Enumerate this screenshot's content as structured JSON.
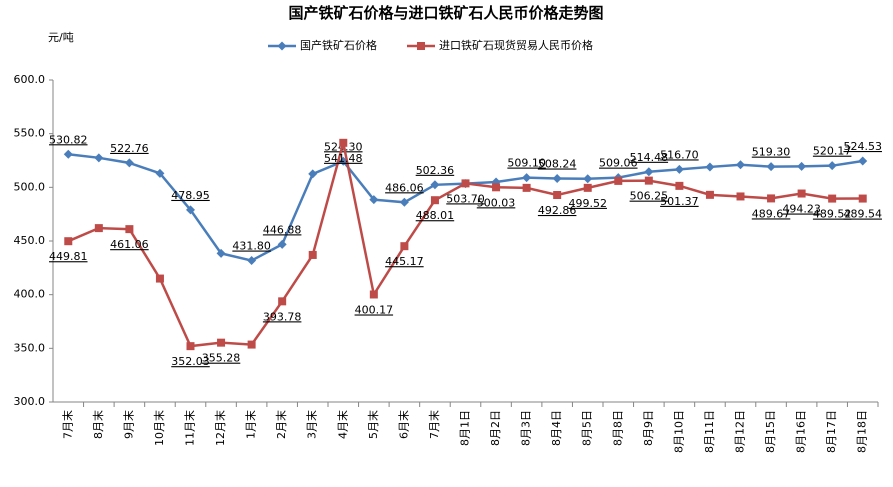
{
  "chart_data": {
    "type": "line",
    "title": "国产铁矿石价格与进口铁矿石人民币价格走势图",
    "y_label": "元/吨",
    "categories": [
      "7月末",
      "8月末",
      "9月末",
      "10月末",
      "11月末",
      "12月末",
      "1月末",
      "2月末",
      "3月末",
      "4月末",
      "5月末",
      "6月末",
      "7月末",
      "8月1日",
      "8月2日",
      "8月3日",
      "8月4日",
      "8月5日",
      "8月8日",
      "8月9日",
      "8月10日",
      "8月11日",
      "8月12日",
      "8月15日",
      "8月16日",
      "8月17日",
      "8月18日"
    ],
    "series": [
      {
        "name": "国产铁矿石价格",
        "color": "#4a7ebb",
        "marker": "diamond",
        "values": [
          530.82,
          527.5,
          522.76,
          513,
          478.95,
          438.5,
          431.8,
          446.88,
          512.5,
          524.3,
          488.5,
          486.06,
          502.36,
          503.5,
          505,
          509.1,
          508.24,
          508,
          509.06,
          514.48,
          516.7,
          519,
          521,
          519.3,
          519.5,
          520.17,
          524.53
        ],
        "value_labels": [
          "530.82",
          null,
          "522.76",
          null,
          "478.95",
          null,
          "431.80",
          "446.88",
          null,
          "524.30",
          null,
          "486.06",
          "502.36",
          null,
          null,
          "509.10",
          "508.24",
          null,
          "509.06",
          "514.48",
          "516.70",
          null,
          null,
          "519.30",
          null,
          "520.17",
          "524.53"
        ]
      },
      {
        "name": "进口铁矿石现货贸易人民币价格",
        "color": "#be4b48",
        "marker": "square",
        "values": [
          449.81,
          462,
          461.06,
          415,
          352.03,
          355.28,
          353.5,
          393.78,
          437,
          541.48,
          400.17,
          445.17,
          488.01,
          503.7,
          500.03,
          499.5,
          492.86,
          499.52,
          506,
          506.25,
          501.37,
          493,
          491.5,
          489.67,
          494.23,
          489.52,
          489.54
        ],
        "value_labels": [
          "449.81",
          null,
          "461.06",
          null,
          "352.03",
          "355.28",
          null,
          "393.78",
          null,
          "541.48",
          "400.17",
          "445.17",
          "488.01",
          "503.70",
          "500.03",
          null,
          "492.86",
          "499.52",
          null,
          "506.25",
          "501.37",
          null,
          null,
          "489.67",
          "494.23",
          "489.52",
          "489.54"
        ]
      }
    ],
    "ylim": [
      300,
      600
    ],
    "yticks": [
      {
        "value": 300,
        "label": "300.0"
      },
      {
        "value": 350,
        "label": "350.0"
      },
      {
        "value": 400,
        "label": "400.0"
      },
      {
        "value": 450,
        "label": "450.0"
      },
      {
        "value": 500,
        "label": "500.0"
      },
      {
        "value": 550,
        "label": "550.0"
      },
      {
        "value": 600,
        "label": "600.0"
      }
    ],
    "grid": false,
    "legend": "top"
  }
}
